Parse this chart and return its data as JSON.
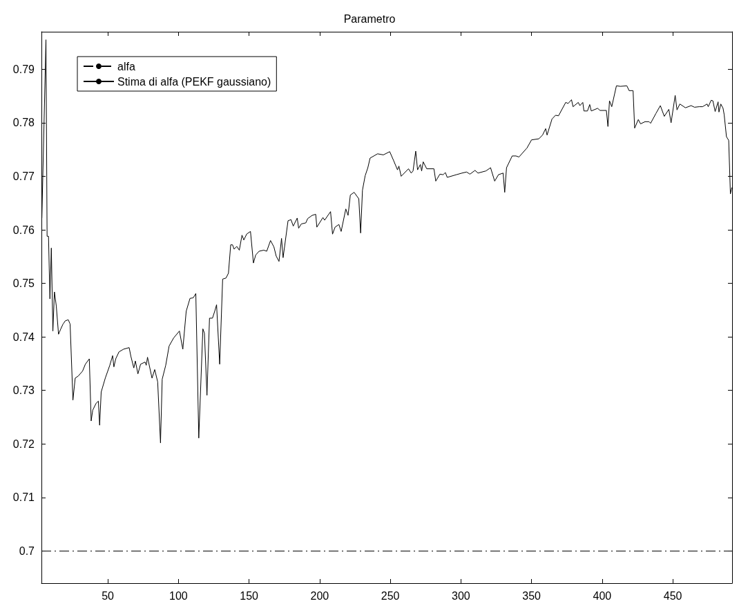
{
  "chart_data": {
    "type": "line",
    "title": "Parametro",
    "xlim": [
      3,
      492
    ],
    "xticks": [
      50,
      100,
      150,
      200,
      250,
      300,
      350,
      400,
      450
    ],
    "ylim": [
      0.694,
      0.797
    ],
    "yticks": [
      0.7,
      0.71,
      0.72,
      0.73,
      0.74,
      0.75,
      0.76,
      0.77,
      0.78,
      0.79
    ],
    "grid": false,
    "legend": "top left",
    "marker": "none",
    "series": [
      {
        "name": "alfa",
        "color": "#000000",
        "line_style": "dashed",
        "x": [
          3,
          492
        ],
        "values": [
          0.7,
          0.7
        ]
      },
      {
        "name": "Stima di alfa (PEKF gaussiano)",
        "color": "#000000",
        "line_style": "solid",
        "x": [
          3.3,
          6.2,
          7,
          8,
          9,
          10,
          11.1,
          12.2,
          13.5,
          15.1,
          16.7,
          18.3,
          19.9,
          22,
          23.3,
          25.3,
          26.9,
          29.1,
          32.1,
          34.1,
          36.9,
          38.2,
          39.3,
          41.7,
          43.3,
          44.2,
          45.3,
          48.2,
          51.4,
          53.4,
          54.3,
          55.6,
          57.9,
          61.1,
          65.1,
          66.3,
          68.4,
          69.5,
          71.3,
          73.2,
          76.4,
          77.2,
          78.1,
          81.3,
          83.2,
          85.3,
          87.3,
          88.5,
          91,
          93.4,
          96.6,
          100.7,
          103.1,
          105.5,
          108.2,
          110.5,
          112.3,
          114.4,
          117.3,
          118.4,
          120.2,
          122,
          124.1,
          125.7,
          127,
          129.2,
          131.3,
          133.7,
          135.4,
          137,
          138.3,
          139.4,
          141.3,
          143.1,
          145,
          146.3,
          148.3,
          151,
          153.1,
          154.7,
          157.1,
          160.4,
          162.5,
          165.2,
          167.6,
          169.2,
          171.2,
          173,
          174.1,
          177.6,
          179.7,
          181.3,
          184.1,
          185.1,
          187,
          190.2,
          191.5,
          194.7,
          197.2,
          198,
          202.3,
          203.5,
          207.7,
          209.1,
          210.9,
          213.6,
          215.2,
          218.5,
          220.1,
          221.7,
          224.4,
          227.7,
          229,
          230.3,
          232.2,
          234.1,
          235.7,
          241,
          245.1,
          249.6,
          252.4,
          255.1,
          256.1,
          257.7,
          262.9,
          264.8,
          266.1,
          268,
          269.3,
          271.3,
          272.2,
          273.3,
          275.8,
          280.9,
          282.2,
          285.1,
          287.4,
          289,
          290.3,
          296.8,
          300.8,
          304,
          306.4,
          310,
          312.1,
          317.7,
          321,
          323.9,
          326.6,
          329.9,
          331,
          332.3,
          336.3,
          339,
          341.1,
          346.8,
          350,
          355.2,
          357.8,
          360,
          361,
          364.5,
          367,
          369.1,
          374.2,
          375.9,
          378.3,
          379.4,
          383.1,
          384.2,
          386.3,
          387.1,
          389.6,
          391.2,
          392.3,
          396.8,
          398.5,
          403,
          404.1,
          405.2,
          406.8,
          410.1,
          412.9,
          417.5,
          419.1,
          421.9,
          423,
          425.6,
          427.2,
          430.4,
          433.2,
          434.3,
          438,
          441.2,
          444,
          447.2,
          448.8,
          451.7,
          453,
          455,
          459,
          463,
          465.4,
          468.7,
          471.1,
          474.3,
          475.1,
          477.2,
          478.4,
          480,
          482.1,
          482.7,
          484,
          485.6,
          486.4,
          488,
          489.6,
          490.8,
          491.8
        ],
        "values": [
          0.7622,
          0.7955,
          0.7588,
          0.7588,
          0.7471,
          0.7566,
          0.7411,
          0.7484,
          0.7458,
          0.7405,
          0.7415,
          0.7424,
          0.743,
          0.7432,
          0.7424,
          0.7282,
          0.7323,
          0.7327,
          0.7336,
          0.7349,
          0.7359,
          0.7243,
          0.7263,
          0.7276,
          0.728,
          0.7235,
          0.7297,
          0.7323,
          0.7347,
          0.7365,
          0.7344,
          0.7359,
          0.7372,
          0.7377,
          0.738,
          0.7364,
          0.7342,
          0.7355,
          0.7331,
          0.7349,
          0.7353,
          0.7347,
          0.7362,
          0.7323,
          0.7339,
          0.7316,
          0.7202,
          0.7321,
          0.7347,
          0.7383,
          0.7398,
          0.7411,
          0.7377,
          0.7448,
          0.7472,
          0.7473,
          0.7481,
          0.7211,
          0.7415,
          0.7407,
          0.7291,
          0.7435,
          0.7435,
          0.7448,
          0.746,
          0.7349,
          0.7508,
          0.751,
          0.7519,
          0.7572,
          0.7572,
          0.7564,
          0.7569,
          0.7562,
          0.759,
          0.7581,
          0.7592,
          0.7597,
          0.7538,
          0.7553,
          0.756,
          0.7562,
          0.756,
          0.758,
          0.7568,
          0.7551,
          0.7541,
          0.7584,
          0.7548,
          0.7617,
          0.7619,
          0.7607,
          0.7622,
          0.7603,
          0.7611,
          0.7613,
          0.7621,
          0.7627,
          0.7629,
          0.7605,
          0.7623,
          0.7618,
          0.7634,
          0.7592,
          0.7605,
          0.761,
          0.7597,
          0.7639,
          0.7627,
          0.7665,
          0.767,
          0.7658,
          0.7594,
          0.7674,
          0.7701,
          0.7716,
          0.7734,
          0.7742,
          0.774,
          0.7746,
          0.7729,
          0.7712,
          0.7719,
          0.77,
          0.7714,
          0.7706,
          0.771,
          0.7747,
          0.7712,
          0.7722,
          0.771,
          0.7727,
          0.7714,
          0.7714,
          0.7691,
          0.7704,
          0.7703,
          0.7707,
          0.7698,
          0.7703,
          0.7706,
          0.7708,
          0.7704,
          0.7711,
          0.7706,
          0.771,
          0.7716,
          0.7691,
          0.7703,
          0.7706,
          0.767,
          0.7716,
          0.7738,
          0.7738,
          0.7736,
          0.7753,
          0.7768,
          0.777,
          0.7777,
          0.7789,
          0.7777,
          0.7807,
          0.7814,
          0.7813,
          0.7838,
          0.7836,
          0.7843,
          0.783,
          0.7838,
          0.7832,
          0.7838,
          0.7822,
          0.7822,
          0.7834,
          0.7822,
          0.7827,
          0.7823,
          0.7823,
          0.7793,
          0.7841,
          0.783,
          0.7869,
          0.7868,
          0.7869,
          0.786,
          0.786,
          0.779,
          0.7806,
          0.7798,
          0.7802,
          0.7802,
          0.7799,
          0.7817,
          0.7832,
          0.7812,
          0.7825,
          0.78,
          0.7851,
          0.7824,
          0.7835,
          0.7828,
          0.7832,
          0.7829,
          0.783,
          0.783,
          0.7835,
          0.783,
          0.7842,
          0.7841,
          0.7821,
          0.7839,
          0.782,
          0.7835,
          0.7827,
          0.7815,
          0.7774,
          0.7767,
          0.7667,
          0.7679
        ]
      }
    ]
  }
}
